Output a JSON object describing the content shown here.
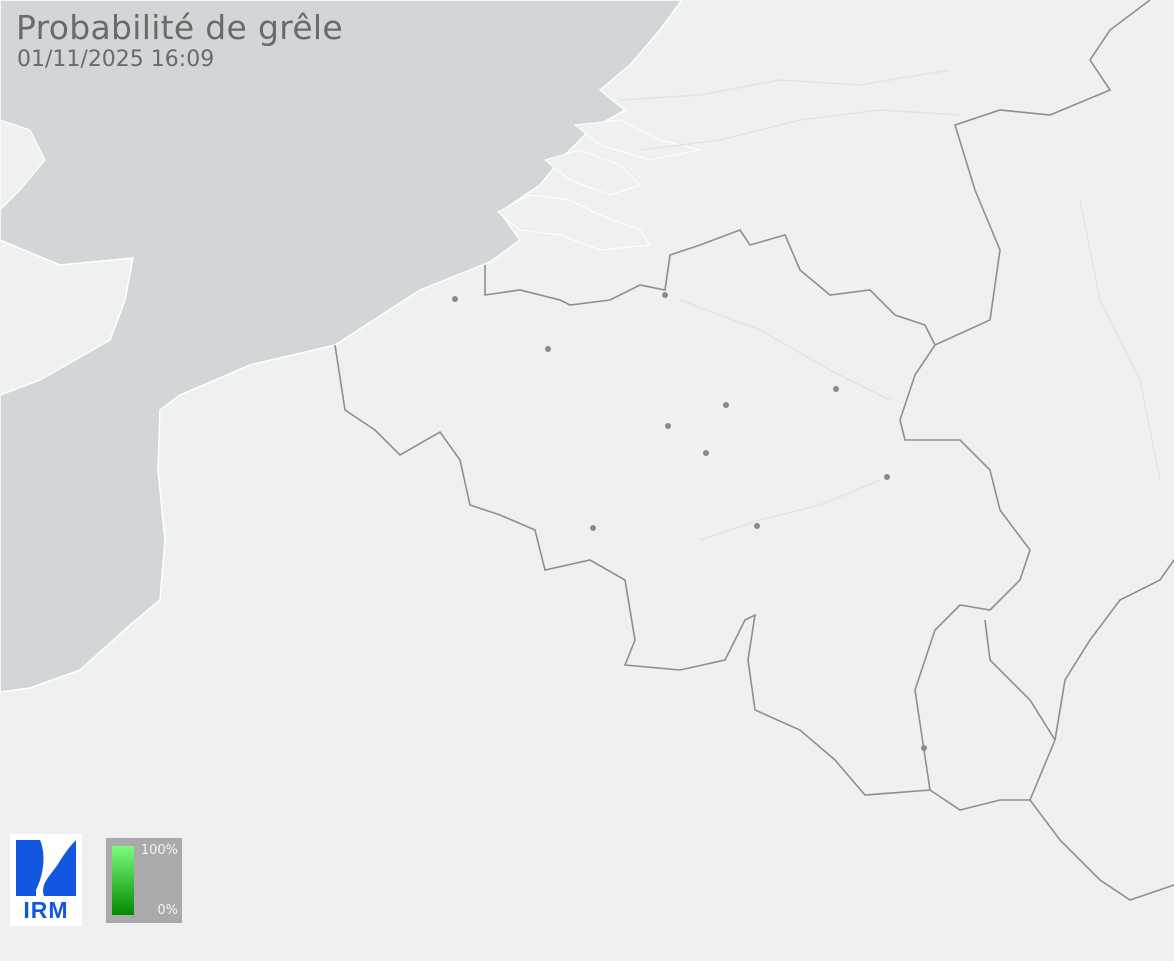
{
  "title": "Probabilité de grêle",
  "timestamp": "01/11/2025 16:09",
  "logo": {
    "text": "IRM",
    "color": "#1257e0"
  },
  "legend": {
    "max_label": "100%",
    "min_label": "0%",
    "color_top": "#7cfc7c",
    "color_bottom": "#028a02"
  },
  "colors": {
    "sea": "#d3d6d8",
    "land": "#eff0f0",
    "border": "#8f8f8f",
    "city": "#8a8a8a"
  }
}
